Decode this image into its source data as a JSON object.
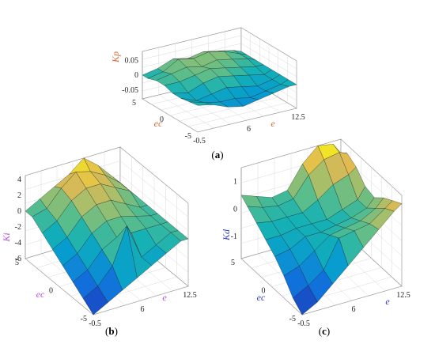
{
  "figure": {
    "colors": {
      "axis_label_red": "#d4693a",
      "axis_label_magenta": "#b54fd6",
      "axis_label_blue": "#2d3fb5",
      "grid": "#d9d9d9",
      "box": "#9a9a9a"
    }
  },
  "chart_data": [
    {
      "type": "surface3d",
      "panel_label": "a",
      "zlabel": "Kp",
      "xlabel": "e",
      "ylabel": "ec",
      "xlim": [
        -0.5,
        12.5
      ],
      "ylim": [
        -5,
        5
      ],
      "zlim": [
        -0.08,
        0.08
      ],
      "xticks": [
        "-0.5",
        "6",
        "12.5"
      ],
      "yticks": [
        "5",
        "0",
        "-5"
      ],
      "zticks": [
        "0.05",
        "0",
        "-0.05"
      ],
      "grid": true,
      "colormap": "parula",
      "x": [
        -0.5,
        1.5,
        3.5,
        5.5,
        7.5,
        9.5,
        11.5,
        12.5
      ],
      "y": [
        -5,
        -3.5,
        -2,
        -0.5,
        1,
        2.5,
        4,
        5
      ],
      "z": [
        [
          0.01,
          0.0,
          -0.02,
          -0.03,
          -0.02,
          -0.01,
          0.0,
          0.0
        ],
        [
          0.005,
          -0.01,
          -0.02,
          -0.02,
          -0.03,
          -0.02,
          -0.01,
          0.0
        ],
        [
          0.0,
          -0.02,
          -0.01,
          0.0,
          -0.01,
          -0.02,
          -0.01,
          0.0
        ],
        [
          0.0,
          -0.01,
          0.01,
          0.02,
          0.01,
          0.0,
          -0.01,
          0.0
        ],
        [
          0.01,
          0.01,
          0.02,
          0.03,
          0.02,
          0.01,
          0.0,
          0.0
        ],
        [
          0.01,
          0.02,
          0.03,
          0.02,
          0.03,
          0.02,
          0.01,
          0.0
        ],
        [
          0.0,
          0.01,
          0.04,
          0.03,
          0.04,
          0.03,
          0.01,
          0.0
        ],
        [
          0.0,
          0.01,
          0.03,
          0.02,
          0.03,
          0.02,
          0.01,
          0.0
        ]
      ]
    },
    {
      "type": "surface3d",
      "panel_label": "b",
      "zlabel": "Ki",
      "xlabel": "e",
      "ylabel": "ec",
      "xlim": [
        -0.5,
        12.5
      ],
      "ylim": [
        -5,
        5
      ],
      "zlim": [
        -6,
        4.5
      ],
      "xticks": [
        "-0.5",
        "6",
        "12.5"
      ],
      "yticks": [
        "5",
        "0",
        "-5"
      ],
      "zticks": [
        "4",
        "2",
        "0",
        "-2",
        "-4",
        "-6"
      ],
      "grid": true,
      "colormap": "parula",
      "x": [
        -0.5,
        1.5,
        3.5,
        5.5,
        7.5,
        9.5,
        11.5,
        12.5
      ],
      "y": [
        -5,
        -3.5,
        -2,
        -0.5,
        1,
        2.5,
        4,
        5
      ],
      "z": [
        [
          -6.0,
          -5.0,
          -4.0,
          -3.0,
          -2.0,
          -1.0,
          0.0,
          0.0
        ],
        [
          -5.0,
          -4.0,
          -2.0,
          2.5,
          -2.0,
          -1.0,
          0.0,
          0.0
        ],
        [
          -4.0,
          -3.0,
          -1.0,
          0.0,
          0.0,
          0.0,
          0.0,
          0.0
        ],
        [
          -3.0,
          -2.0,
          0.0,
          1.0,
          1.0,
          0.5,
          0.0,
          0.0
        ],
        [
          -2.0,
          -1.0,
          1.0,
          2.0,
          2.0,
          1.0,
          0.0,
          0.0
        ],
        [
          -1.0,
          0.0,
          2.0,
          3.0,
          3.0,
          2.0,
          1.0,
          0.0
        ],
        [
          0.0,
          0.5,
          2.5,
          4.0,
          3.5,
          2.5,
          1.0,
          0.0
        ],
        [
          0.0,
          1.0,
          2.0,
          3.0,
          4.5,
          3.0,
          1.0,
          0.0
        ]
      ]
    },
    {
      "type": "surface3d",
      "panel_label": "c",
      "zlabel": "Kd",
      "xlabel": "e",
      "ylabel": "ec",
      "xlim": [
        -0.5,
        12.5
      ],
      "ylim": [
        -5,
        5
      ],
      "zlim": [
        -1.8,
        1.5
      ],
      "xticks": [
        "-0.5",
        "6",
        "12.5"
      ],
      "yticks": [
        "5",
        "0",
        "-5"
      ],
      "zticks": [
        "1",
        "0",
        "-1"
      ],
      "grid": true,
      "colormap": "parula",
      "x": [
        -0.5,
        1.5,
        3.5,
        5.5,
        7.5,
        9.5,
        11.5,
        12.5
      ],
      "y": [
        -5,
        -3.5,
        -2,
        -0.5,
        1,
        2.5,
        4,
        5
      ],
      "z": [
        [
          -1.8,
          -1.5,
          -1.0,
          -0.5,
          0.0,
          0.5,
          1.0,
          1.2
        ],
        [
          -1.5,
          -1.2,
          -0.8,
          0.2,
          0.3,
          0.4,
          0.8,
          1.0
        ],
        [
          -1.0,
          -0.8,
          -0.4,
          0.0,
          0.1,
          0.2,
          0.5,
          0.8
        ],
        [
          -0.6,
          -0.5,
          -0.2,
          -0.2,
          -0.1,
          0.0,
          0.2,
          0.5
        ],
        [
          -0.3,
          -0.3,
          -0.2,
          -0.2,
          -0.2,
          0.0,
          0.2,
          0.6
        ],
        [
          0.0,
          -0.1,
          -0.1,
          -0.1,
          0.2,
          0.6,
          0.8,
          1.0
        ],
        [
          0.3,
          0.1,
          0.0,
          0.1,
          0.8,
          1.2,
          1.3,
          1.2
        ],
        [
          0.5,
          0.3,
          0.1,
          0.2,
          1.0,
          1.5,
          1.4,
          1.0
        ]
      ]
    }
  ]
}
